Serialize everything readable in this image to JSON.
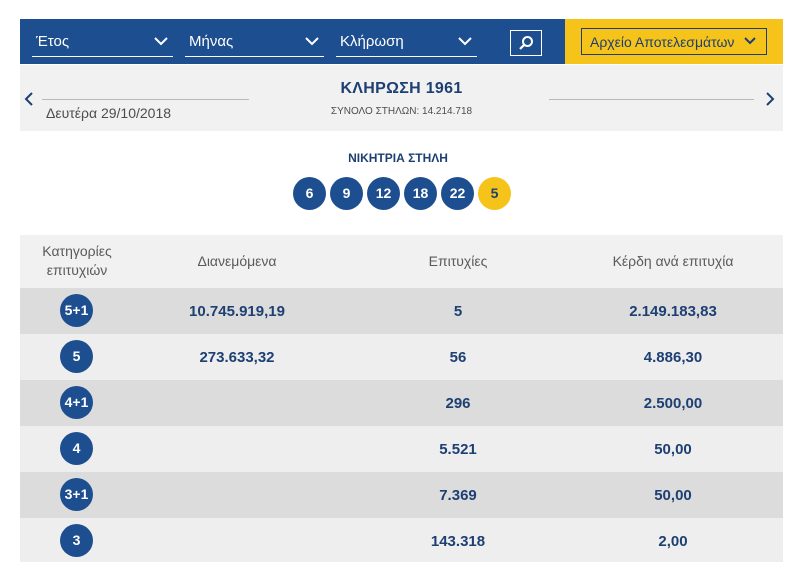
{
  "filters": {
    "year_label": "Έτος",
    "month_label": "Μήνας",
    "draw_label": "Κλήρωση",
    "archive_label": "Αρχείο Αποτελεσμάτων"
  },
  "draw": {
    "title": "ΚΛΗΡΩΣΗ 1961",
    "columns_text": "ΣΥΝΟΛΟ ΣΤΗΛΩΝ: 14.214.718",
    "date": "Δευτέρα 29/10/2018"
  },
  "winning": {
    "title": "ΝΙΚΗΤΡΙΑ ΣΤΗΛΗ",
    "numbers": [
      "6",
      "9",
      "12",
      "18",
      "22"
    ],
    "joker": "5"
  },
  "table": {
    "headers": {
      "category": "Κατηγορίες επιτυχιών",
      "distributed": "Διανεμόμενα",
      "winners": "Επιτυχίες",
      "prize": "Κέρδη ανά επιτυχία"
    },
    "rows": [
      {
        "category": "5+1",
        "distributed": "10.745.919,19",
        "winners": "5",
        "prize": "2.149.183,83"
      },
      {
        "category": "5",
        "distributed": "273.633,32",
        "winners": "56",
        "prize": "4.886,30"
      },
      {
        "category": "4+1",
        "distributed": "",
        "winners": "296",
        "prize": "2.500,00"
      },
      {
        "category": "4",
        "distributed": "",
        "winners": "5.521",
        "prize": "50,00"
      },
      {
        "category": "3+1",
        "distributed": "",
        "winners": "7.369",
        "prize": "50,00"
      },
      {
        "category": "3",
        "distributed": "",
        "winners": "143.318",
        "prize": "2,00"
      }
    ]
  },
  "icons": {
    "search": "search-icon",
    "chevron": "chevron-down-icon",
    "prev": "chevron-left-icon",
    "next": "chevron-right-icon"
  },
  "colors": {
    "primary": "#1d4e8f",
    "accent": "#f5c319",
    "text": "#1d3f72"
  }
}
